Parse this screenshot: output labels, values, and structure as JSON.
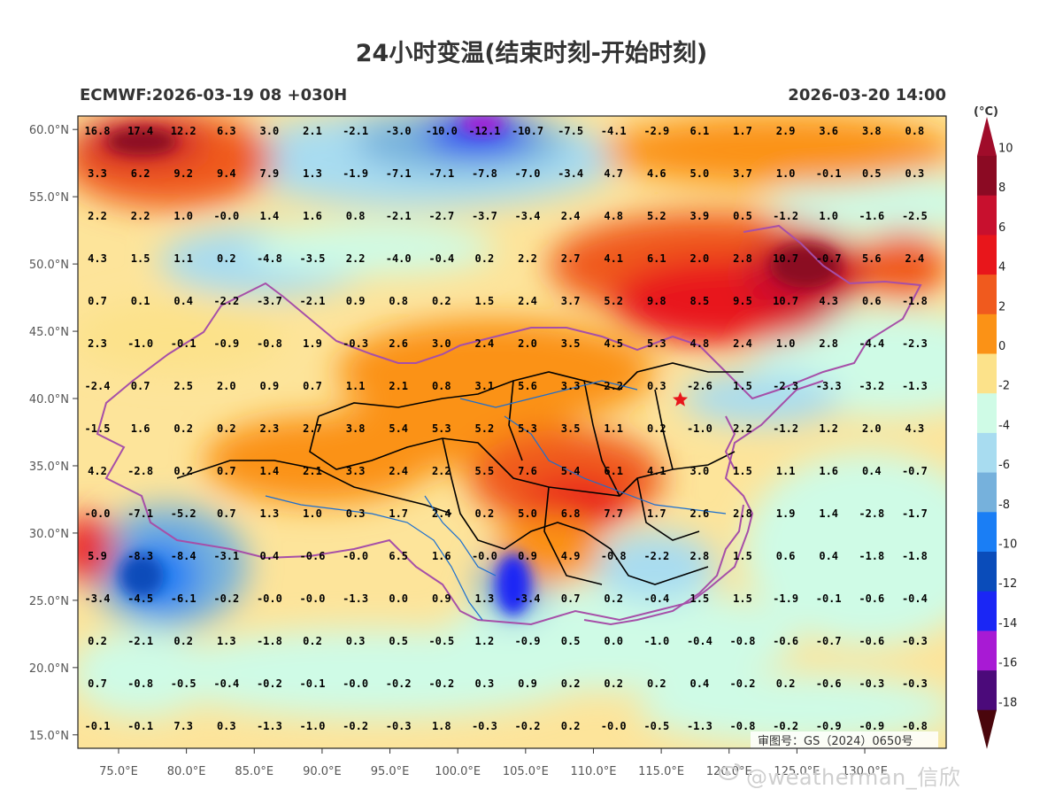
{
  "title": "24小时变温(结束时刻-开始时刻)",
  "subtitle_left": "ECMWF:2026-03-19 08 +030H",
  "subtitle_right": "2026-03-20 14:00",
  "approval_number": "审图号：GS（2024）0650号",
  "watermark": "@weatherman_信欣",
  "colorbar": {
    "unit": "(°C)",
    "labels": [
      "10",
      "8",
      "6",
      "4",
      "2",
      "0",
      "-2",
      "-4",
      "-6",
      "-8",
      "-10",
      "-12",
      "-14",
      "-16",
      "-18"
    ],
    "colors": [
      "#8b0a23",
      "#c8102e",
      "#e8161b",
      "#f05a1e",
      "#fb9216",
      "#fce28a",
      "#cffbe6",
      "#a8dcf0",
      "#76b1dc",
      "#1a7ef5",
      "#0a4cba",
      "#1a26f5",
      "#a81ad4",
      "#4b0a7a",
      "#7d0f17"
    ]
  },
  "lon_labels": [
    "75.0°E",
    "80.0°E",
    "85.0°E",
    "90.0°E",
    "95.0°E",
    "100.0°E",
    "105.0°E",
    "110.0°E",
    "115.0°E",
    "120.0°E",
    "125.0°E",
    "130.0°E"
  ],
  "lat_labels": [
    "60.0°N",
    "55.0°N",
    "50.0°N",
    "45.0°N",
    "40.0°N",
    "35.0°N",
    "30.0°N",
    "25.0°N",
    "20.0°N",
    "15.0°N"
  ],
  "grid_values": [
    [
      "16.8",
      "17.4",
      "12.2",
      "6.3",
      "3.0",
      "2.1",
      "-2.1",
      "-3.0",
      "-10.0",
      "-12.1",
      "-10.7",
      "-7.5",
      "-4.1",
      "-2.9",
      "6.1",
      "1.7",
      "2.9",
      "3.6",
      "3.8",
      "0.8"
    ],
    [
      "3.3",
      "6.2",
      "9.2",
      "9.4",
      "7.9",
      "1.3",
      "-1.9",
      "-7.1",
      "-7.1",
      "-7.8",
      "-7.0",
      "-3.4",
      "4.7",
      "4.6",
      "5.0",
      "3.7",
      "1.0",
      "-0.1",
      "0.5",
      "0.3"
    ],
    [
      "2.2",
      "2.2",
      "1.0",
      "-0.0",
      "1.4",
      "1.6",
      "0.8",
      "-2.1",
      "-2.7",
      "-3.7",
      "-3.4",
      "2.4",
      "4.8",
      "5.2",
      "3.9",
      "0.5",
      "-1.2",
      "1.0",
      "-1.6",
      "-2.5"
    ],
    [
      "4.3",
      "1.5",
      "1.1",
      "0.2",
      "-4.8",
      "-3.5",
      "2.2",
      "-4.0",
      "-0.4",
      "0.2",
      "2.2",
      "2.7",
      "4.1",
      "6.1",
      "2.0",
      "2.8",
      "10.7",
      "-0.7",
      "5.6",
      "2.4"
    ],
    [
      "0.7",
      "0.1",
      "0.4",
      "-2.2",
      "-3.7",
      "-2.1",
      "0.9",
      "0.8",
      "0.2",
      "1.5",
      "2.4",
      "3.7",
      "5.2",
      "9.8",
      "8.5",
      "9.5",
      "10.7",
      "4.3",
      "0.6",
      "-1.8"
    ],
    [
      "2.3",
      "-1.0",
      "-0.1",
      "-0.9",
      "-0.8",
      "1.9",
      "-0.3",
      "2.6",
      "3.0",
      "2.4",
      "2.0",
      "3.5",
      "4.5",
      "5.3",
      "4.8",
      "2.4",
      "1.0",
      "2.8",
      "-4.4",
      "-2.3"
    ],
    [
      "-2.4",
      "0.7",
      "2.5",
      "2.0",
      "0.9",
      "0.7",
      "1.1",
      "2.1",
      "0.8",
      "3.1",
      "5.6",
      "3.3",
      "2.2",
      "0.3",
      "-2.6",
      "1.5",
      "-2.3",
      "-3.3",
      "-3.2",
      "-1.3"
    ],
    [
      "-1.5",
      "1.6",
      "0.2",
      "0.2",
      "2.3",
      "2.7",
      "3.8",
      "5.4",
      "5.3",
      "5.2",
      "5.3",
      "3.5",
      "1.1",
      "0.2",
      "-1.0",
      "2.2",
      "-1.2",
      "1.2",
      "2.0",
      "4.3"
    ],
    [
      "4.2",
      "-2.8",
      "0.2",
      "0.7",
      "1.4",
      "2.1",
      "3.3",
      "2.4",
      "2.2",
      "5.5",
      "7.6",
      "5.4",
      "6.1",
      "4.1",
      "3.0",
      "1.5",
      "1.1",
      "1.6",
      "0.4",
      "-0.7"
    ],
    [
      "-0.0",
      "-7.1",
      "-5.2",
      "0.7",
      "1.3",
      "1.0",
      "0.3",
      "1.7",
      "2.4",
      "0.2",
      "5.0",
      "6.8",
      "7.7",
      "1.7",
      "2.6",
      "2.8",
      "1.9",
      "1.4",
      "-2.8",
      "-1.7"
    ],
    [
      "5.9",
      "-8.3",
      "-8.4",
      "-3.1",
      "0.4",
      "-0.6",
      "-0.0",
      "6.5",
      "1.6",
      "-0.0",
      "0.9",
      "4.9",
      "-0.8",
      "-2.2",
      "2.8",
      "1.5",
      "0.6",
      "0.4",
      "-1.8",
      "-1.8"
    ],
    [
      "-3.4",
      "-4.5",
      "-6.1",
      "-0.2",
      "-0.0",
      "-0.0",
      "-1.3",
      "0.0",
      "0.9",
      "1.3",
      "-3.4",
      "0.7",
      "0.2",
      "-0.4",
      "1.5",
      "1.5",
      "-1.9",
      "-0.1",
      "-0.6",
      "-0.4"
    ],
    [
      "0.2",
      "-2.1",
      "0.2",
      "1.3",
      "-1.8",
      "0.2",
      "0.3",
      "0.5",
      "-0.5",
      "1.2",
      "-0.9",
      "0.5",
      "0.0",
      "-1.0",
      "-0.4",
      "-0.8",
      "-0.6",
      "-0.7",
      "-0.6",
      "-0.3"
    ],
    [
      "0.7",
      "-0.8",
      "-0.5",
      "-0.4",
      "-0.2",
      "-0.1",
      "-0.0",
      "-0.2",
      "-0.2",
      "0.3",
      "0.9",
      "0.2",
      "0.2",
      "0.2",
      "0.4",
      "-0.2",
      "0.2",
      "-0.6",
      "-0.3",
      "-0.3"
    ],
    [
      "-0.1",
      "-0.1",
      "7.3",
      "0.3",
      "-1.3",
      "-1.0",
      "-0.2",
      "-0.3",
      "1.8",
      "-0.3",
      "-0.2",
      "0.2",
      "-0.0",
      "-0.5",
      "-1.3",
      "-0.8",
      "-0.2",
      "-0.9",
      "-0.9",
      "-0.8"
    ]
  ],
  "lon_range": [
    72,
    136
  ],
  "lat_range": [
    14,
    61
  ],
  "marker": {
    "name": "Beijing",
    "lon": 116.4,
    "lat": 39.9,
    "color": "#e8161b"
  }
}
